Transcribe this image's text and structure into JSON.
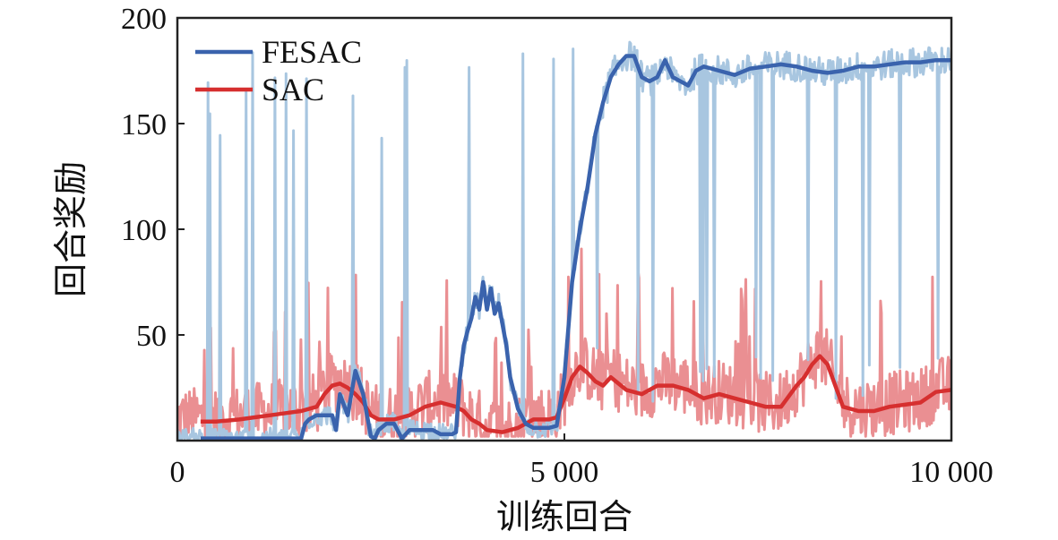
{
  "chart_data": {
    "type": "line",
    "xlabel": "训练回合",
    "ylabel": "回合奖励",
    "xlim": [
      0,
      10000
    ],
    "ylim": [
      0,
      200
    ],
    "x_ticks": [
      0,
      5000,
      10000
    ],
    "x_tick_labels": [
      "0",
      "5 000",
      "10 000"
    ],
    "y_ticks": [
      50,
      100,
      150,
      200
    ],
    "y_tick_labels": [
      "50",
      "100",
      "150",
      "200"
    ],
    "grid": false,
    "legend": "top-left",
    "colors": {
      "FESAC": "#3a63ad",
      "FESAC_raw": "#a8c6e0",
      "SAC": "#d62f2f",
      "SAC_raw": "#ea8f92"
    },
    "series": [
      {
        "name": "FESAC",
        "x": [
          300,
          500,
          800,
          1000,
          1300,
          1600,
          1650,
          1700,
          1800,
          2000,
          2050,
          2100,
          2200,
          2300,
          2400,
          2500,
          2550,
          2600,
          2700,
          2800,
          2900,
          3000,
          3100,
          3200,
          3300,
          3400,
          3500,
          3550,
          3600,
          3650,
          3700,
          3750,
          3800,
          3850,
          3900,
          3950,
          4000,
          4050,
          4100,
          4150,
          4200,
          4250,
          4300,
          4400,
          4500,
          4600,
          4700,
          4800,
          4900,
          5000,
          5100,
          5200,
          5300,
          5400,
          5500,
          5600,
          5700,
          5800,
          5900,
          6000,
          6100,
          6200,
          6300,
          6400,
          6500,
          6600,
          6700,
          6800,
          6900,
          7000,
          7200,
          7400,
          7600,
          7800,
          8000,
          8200,
          8400,
          8600,
          8800,
          9000,
          9200,
          9400,
          9600,
          9800,
          10000
        ],
        "values": [
          1,
          1,
          1,
          1,
          1,
          1,
          8,
          10,
          12,
          12,
          5,
          22,
          12,
          33,
          22,
          2,
          1,
          5,
          8,
          8,
          1,
          5,
          5,
          5,
          5,
          3,
          3,
          3,
          4,
          30,
          45,
          52,
          58,
          68,
          62,
          75,
          62,
          72,
          60,
          65,
          55,
          45,
          30,
          15,
          8,
          6,
          6,
          6,
          7,
          30,
          75,
          100,
          120,
          145,
          160,
          172,
          178,
          182,
          182,
          172,
          170,
          172,
          180,
          172,
          170,
          168,
          175,
          177,
          176,
          175,
          173,
          176,
          177,
          178,
          177,
          175,
          174,
          175,
          177,
          177,
          178,
          179,
          179,
          180,
          180
        ]
      },
      {
        "name": "SAC",
        "x": [
          300,
          500,
          800,
          1000,
          1200,
          1400,
          1600,
          1800,
          1900,
          2000,
          2100,
          2200,
          2300,
          2400,
          2500,
          2600,
          2800,
          3000,
          3200,
          3400,
          3600,
          3700,
          3800,
          3900,
          4000,
          4200,
          4400,
          4600,
          4800,
          4900,
          5000,
          5100,
          5200,
          5300,
          5400,
          5500,
          5600,
          5800,
          6000,
          6200,
          6400,
          6600,
          6800,
          7000,
          7200,
          7400,
          7600,
          7800,
          8000,
          8100,
          8200,
          8300,
          8400,
          8500,
          8600,
          8800,
          9000,
          9200,
          9400,
          9600,
          9800,
          10000
        ],
        "values": [
          9,
          9,
          10,
          11,
          12,
          13,
          14,
          16,
          22,
          26,
          27,
          25,
          22,
          18,
          12,
          10,
          10,
          12,
          16,
          18,
          16,
          14,
          10,
          8,
          5,
          4,
          6,
          10,
          10,
          11,
          20,
          30,
          35,
          32,
          28,
          26,
          30,
          24,
          22,
          26,
          26,
          24,
          20,
          22,
          20,
          18,
          16,
          16,
          26,
          30,
          36,
          40,
          36,
          26,
          16,
          14,
          14,
          16,
          17,
          18,
          23,
          24
        ]
      }
    ]
  }
}
